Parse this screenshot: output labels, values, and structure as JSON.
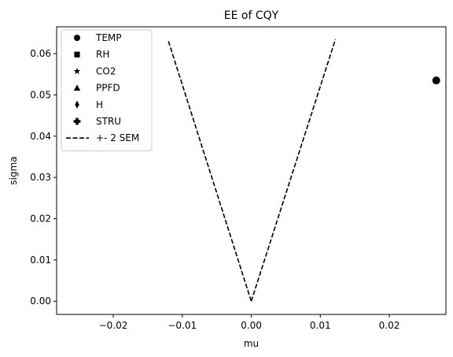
{
  "chart_data": {
    "type": "scatter",
    "title": "EE of CQY",
    "xlabel": "mu",
    "ylabel": "sigma",
    "xlim": [
      -0.0282,
      0.0282
    ],
    "ylim": [
      -0.0032,
      0.0665
    ],
    "x_ticks": [
      -0.02,
      -0.01,
      0.0,
      0.01,
      0.02
    ],
    "x_tick_labels": [
      "−0.02",
      "−0.01",
      "0.00",
      "0.01",
      "0.02"
    ],
    "y_ticks": [
      0.0,
      0.01,
      0.02,
      0.03,
      0.04,
      0.05,
      0.06
    ],
    "y_tick_labels": [
      "0.00",
      "0.01",
      "0.02",
      "0.03",
      "0.04",
      "0.05",
      "0.06"
    ],
    "grid": false,
    "legend_position": "top-left",
    "series": [
      {
        "name": "TEMP",
        "marker": "circle",
        "color": "#000000",
        "points": [
          {
            "x": 0.0268,
            "y": 0.0535
          }
        ]
      },
      {
        "name": "RH",
        "marker": "square",
        "color": "#000000",
        "points": []
      },
      {
        "name": "CO2",
        "marker": "star",
        "color": "#000000",
        "points": []
      },
      {
        "name": "PPFD",
        "marker": "triangle",
        "color": "#000000",
        "points": []
      },
      {
        "name": "H",
        "marker": "thin-diamond",
        "color": "#000000",
        "points": []
      },
      {
        "name": "STRU",
        "marker": "plus",
        "color": "#000000",
        "points": []
      }
    ],
    "sem_lines": {
      "name": "+- 2 SEM",
      "style": "dashed",
      "color": "#000000",
      "lines": [
        {
          "x": [
            -0.012,
            0.0
          ],
          "y": [
            0.063,
            0.0
          ]
        },
        {
          "x": [
            0.0,
            0.0122
          ],
          "y": [
            0.0,
            0.0635
          ]
        }
      ]
    }
  }
}
